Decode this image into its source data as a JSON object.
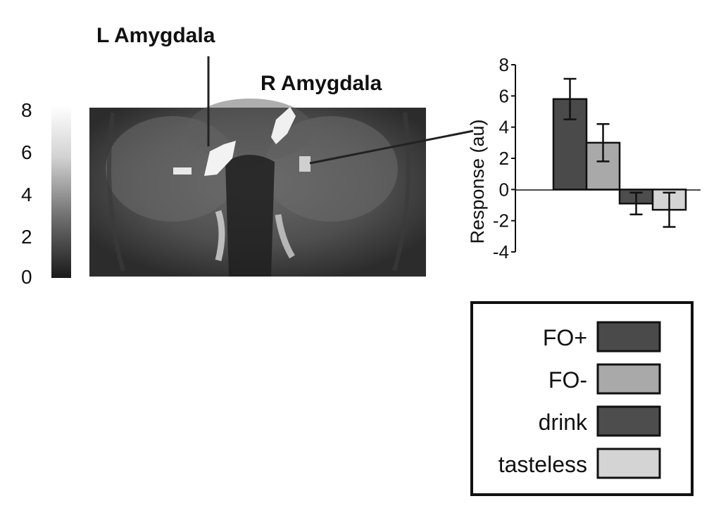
{
  "regions": {
    "left": "L Amygdala",
    "right": "R Amygdala"
  },
  "colorscale": {
    "ticks": [
      "0",
      "2",
      "4",
      "6",
      "8"
    ],
    "min": 0,
    "max": 8
  },
  "chart_data": {
    "type": "bar",
    "title": "",
    "xlabel": "",
    "ylabel": "Response (au)",
    "ylim": [
      -4,
      8
    ],
    "yticks": [
      8,
      6,
      4,
      2,
      0,
      -2,
      -4
    ],
    "grid": false,
    "legend_position": "bottom-right",
    "categories": [
      "FO+",
      "FO-",
      "drink",
      "tasteless"
    ],
    "values": [
      5.8,
      3.0,
      -0.9,
      -1.3
    ],
    "errors": [
      1.3,
      1.2,
      0.7,
      1.1
    ],
    "colors": [
      "#4a4a4a",
      "#a9a9a9",
      "#4d4d4d",
      "#d4d4d4"
    ]
  },
  "legend": {
    "items": [
      {
        "label": "FO+",
        "color": "#4a4a4a"
      },
      {
        "label": "FO-",
        "color": "#a9a9a9"
      },
      {
        "label": "drink",
        "color": "#4d4d4d"
      },
      {
        "label": "tasteless",
        "color": "#d4d4d4"
      }
    ]
  }
}
